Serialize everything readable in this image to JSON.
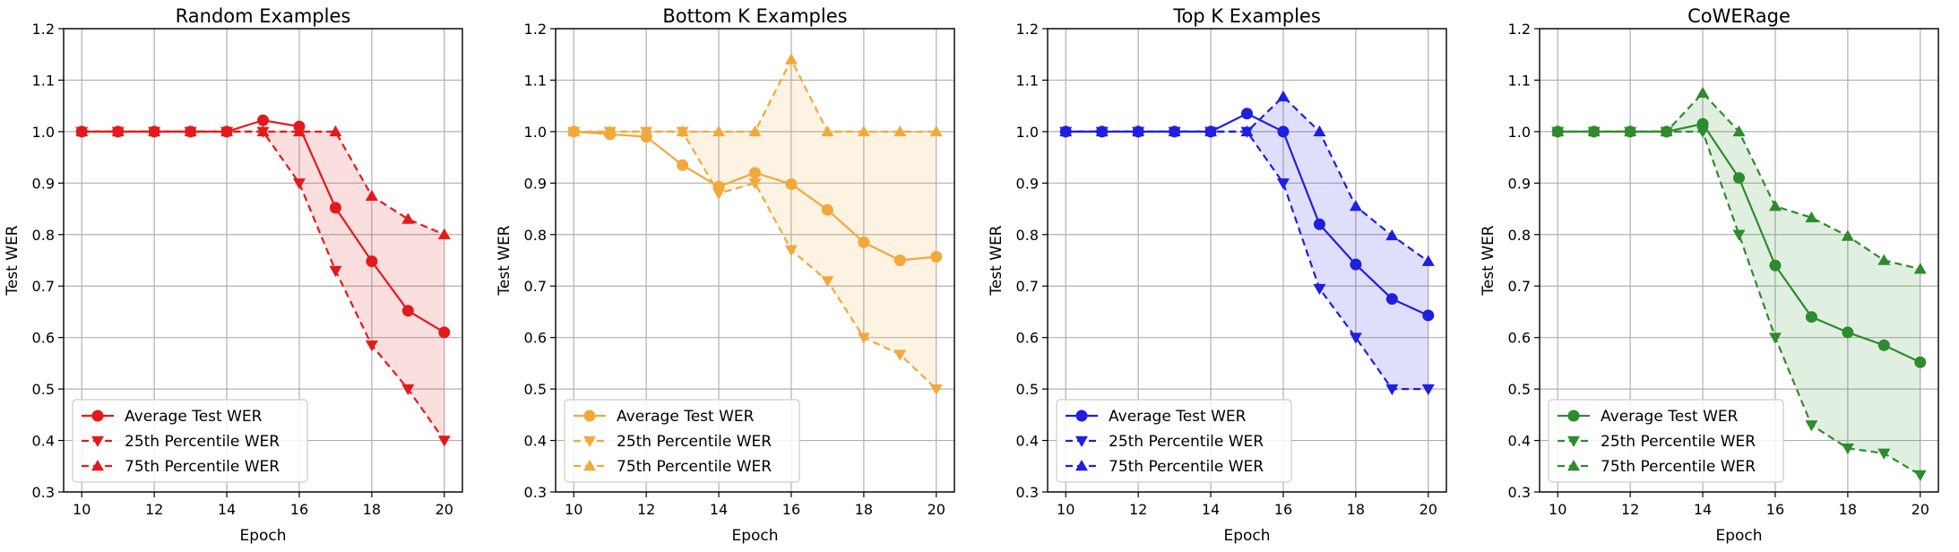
{
  "chart_data": [
    {
      "type": "line",
      "title": "Random Examples",
      "xlabel": "Epoch",
      "ylabel": "Test WER",
      "xlim": [
        9.5,
        20.5
      ],
      "ylim": [
        0.3,
        1.2
      ],
      "xticks": [
        "10",
        "12",
        "14",
        "16",
        "18",
        "20"
      ],
      "yticks": [
        "0.3",
        "0.4",
        "0.5",
        "0.6",
        "0.7",
        "0.8",
        "0.9",
        "1.0",
        "1.1",
        "1.2"
      ],
      "grid": true,
      "legend": "lower-left",
      "color": "#e31a1c",
      "fill_between": [
        "25th Percentile WER",
        "75th Percentile WER"
      ],
      "x": [
        10,
        11,
        12,
        13,
        14,
        15,
        16,
        17,
        18,
        19,
        20
      ],
      "series": [
        {
          "name": "Average Test WER",
          "marker": "circle",
          "linestyle": "solid",
          "values": [
            1.0,
            1.0,
            1.0,
            1.0,
            1.0,
            1.022,
            1.01,
            0.852,
            0.748,
            0.652,
            0.61
          ]
        },
        {
          "name": "25th Percentile WER",
          "marker": "triangle-down",
          "linestyle": "dashed",
          "values": [
            1.0,
            1.0,
            1.0,
            1.0,
            1.0,
            1.0,
            0.9,
            0.73,
            0.585,
            0.5,
            0.4
          ]
        },
        {
          "name": "75th Percentile WER",
          "marker": "triangle-up",
          "linestyle": "dashed",
          "values": [
            1.0,
            1.0,
            1.0,
            1.0,
            1.0,
            1.0,
            1.0,
            1.0,
            0.875,
            0.83,
            0.8
          ]
        }
      ]
    },
    {
      "type": "line",
      "title": "Bottom K Examples",
      "xlabel": "Epoch",
      "ylabel": "Test WER",
      "xlim": [
        9.5,
        20.5
      ],
      "ylim": [
        0.3,
        1.2
      ],
      "xticks": [
        "10",
        "12",
        "14",
        "16",
        "18",
        "20"
      ],
      "yticks": [
        "0.3",
        "0.4",
        "0.5",
        "0.6",
        "0.7",
        "0.8",
        "0.9",
        "1.0",
        "1.1",
        "1.2"
      ],
      "grid": true,
      "legend": "lower-left",
      "color": "#f2a93b",
      "fill_between": [
        "25th Percentile WER",
        "75th Percentile WER"
      ],
      "x": [
        10,
        11,
        12,
        13,
        14,
        15,
        16,
        17,
        18,
        19,
        20
      ],
      "series": [
        {
          "name": "Average Test WER",
          "marker": "circle",
          "linestyle": "solid",
          "values": [
            1.0,
            0.995,
            0.99,
            0.935,
            0.893,
            0.92,
            0.898,
            0.848,
            0.785,
            0.75,
            0.757
          ]
        },
        {
          "name": "25th Percentile WER",
          "marker": "triangle-down",
          "linestyle": "dashed",
          "values": [
            1.0,
            1.0,
            1.0,
            1.0,
            0.88,
            0.9,
            0.77,
            0.71,
            0.6,
            0.567,
            0.5
          ]
        },
        {
          "name": "75th Percentile WER",
          "marker": "triangle-up",
          "linestyle": "dashed",
          "values": [
            1.0,
            1.0,
            1.0,
            1.0,
            1.0,
            1.0,
            1.14,
            1.0,
            1.0,
            1.0,
            1.0
          ]
        }
      ]
    },
    {
      "type": "line",
      "title": "Top K Examples",
      "xlabel": "Epoch",
      "ylabel": "Test WER",
      "xlim": [
        9.5,
        20.5
      ],
      "ylim": [
        0.3,
        1.2
      ],
      "xticks": [
        "10",
        "12",
        "14",
        "16",
        "18",
        "20"
      ],
      "yticks": [
        "0.3",
        "0.4",
        "0.5",
        "0.6",
        "0.7",
        "0.8",
        "0.9",
        "1.0",
        "1.1",
        "1.2"
      ],
      "grid": true,
      "legend": "lower-left",
      "color": "#1f1fe0",
      "fill_between": [
        "25th Percentile WER",
        "75th Percentile WER"
      ],
      "x": [
        10,
        11,
        12,
        13,
        14,
        15,
        16,
        17,
        18,
        19,
        20
      ],
      "series": [
        {
          "name": "Average Test WER",
          "marker": "circle",
          "linestyle": "solid",
          "values": [
            1.0,
            1.0,
            1.0,
            1.0,
            1.0,
            1.035,
            1.0,
            0.82,
            0.742,
            0.675,
            0.643
          ]
        },
        {
          "name": "25th Percentile WER",
          "marker": "triangle-down",
          "linestyle": "dashed",
          "values": [
            1.0,
            1.0,
            1.0,
            1.0,
            1.0,
            1.0,
            0.9,
            0.695,
            0.6,
            0.5,
            0.5
          ]
        },
        {
          "name": "75th Percentile WER",
          "marker": "triangle-up",
          "linestyle": "dashed",
          "values": [
            1.0,
            1.0,
            1.0,
            1.0,
            1.0,
            1.0,
            1.068,
            1.0,
            0.855,
            0.798,
            0.748
          ]
        }
      ]
    },
    {
      "type": "line",
      "title": "CoWERage",
      "xlabel": "Epoch",
      "ylabel": "Test WER",
      "xlim": [
        9.5,
        20.5
      ],
      "ylim": [
        0.3,
        1.2
      ],
      "xticks": [
        "10",
        "12",
        "14",
        "16",
        "18",
        "20"
      ],
      "yticks": [
        "0.3",
        "0.4",
        "0.5",
        "0.6",
        "0.7",
        "0.8",
        "0.9",
        "1.0",
        "1.1",
        "1.2"
      ],
      "grid": true,
      "legend": "lower-left",
      "color": "#2e8b2e",
      "fill_between": [
        "25th Percentile WER",
        "75th Percentile WER"
      ],
      "x": [
        10,
        11,
        12,
        13,
        14,
        15,
        16,
        17,
        18,
        19,
        20
      ],
      "series": [
        {
          "name": "Average Test WER",
          "marker": "circle",
          "linestyle": "solid",
          "values": [
            1.0,
            1.0,
            1.0,
            1.0,
            1.015,
            0.91,
            0.74,
            0.64,
            0.61,
            0.585,
            0.552
          ]
        },
        {
          "name": "25th Percentile WER",
          "marker": "triangle-down",
          "linestyle": "dashed",
          "values": [
            1.0,
            1.0,
            1.0,
            1.0,
            1.0,
            0.8,
            0.6,
            0.43,
            0.385,
            0.375,
            0.333
          ]
        },
        {
          "name": "75th Percentile WER",
          "marker": "triangle-up",
          "linestyle": "dashed",
          "values": [
            1.0,
            1.0,
            1.0,
            1.0,
            1.075,
            1.0,
            0.855,
            0.833,
            0.797,
            0.75,
            0.733
          ]
        }
      ]
    }
  ]
}
